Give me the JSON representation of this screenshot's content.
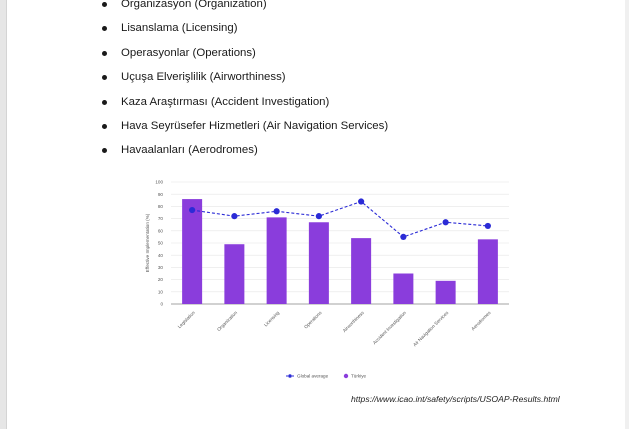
{
  "bullets": [
    "Organizasyon (Organization)",
    "Lisanslama (Licensing)",
    "Operasyonlar (Operations)",
    "Uçuşa Elverişlilik (Airworthiness)",
    "Kaza Araştırması (Accident Investigation)",
    "Hava Seyrüsefer Hizmetleri (Air Navigation Services)",
    "Havaalanları (Aerodromes)"
  ],
  "chart_data": {
    "type": "bar",
    "categories": [
      "Legislation",
      "Organization",
      "Licensing",
      "Operations",
      "Airworthiness",
      "Accident Investigation",
      "Air Navigation Services",
      "Aerodromes"
    ],
    "series": [
      {
        "name": "Türkiye",
        "type": "bar",
        "color": "#8a3ddc",
        "values": [
          86,
          49,
          71,
          67,
          54,
          25,
          19,
          53
        ]
      },
      {
        "name": "Global average",
        "type": "line",
        "style": "dashed",
        "color": "#2b2bd6",
        "values": [
          77,
          72,
          76,
          72,
          84,
          55,
          67,
          64
        ]
      }
    ],
    "ylabel": "Effective Implementation (%)",
    "xlabel": "",
    "ylim": [
      0,
      100
    ],
    "yticks": [
      0,
      10,
      20,
      30,
      40,
      50,
      60,
      70,
      80,
      90,
      100
    ],
    "grid": true,
    "legend": "bottom"
  },
  "source_text": "https://www.icao.int/safety/scripts/USOAP-Results.html"
}
